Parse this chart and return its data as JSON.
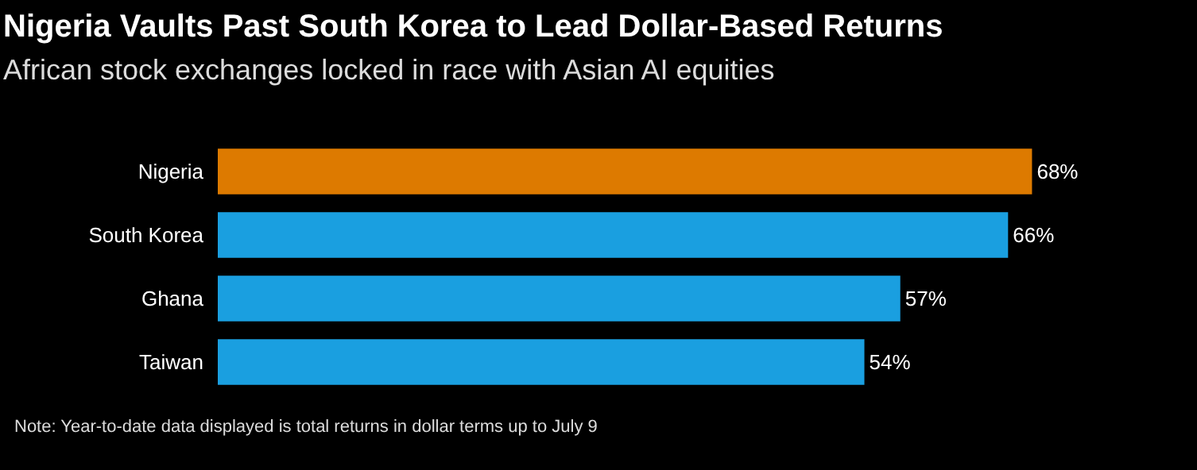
{
  "chart_data": {
    "type": "bar",
    "orientation": "horizontal",
    "title": "Nigeria Vaults Past South Korea to Lead Dollar-Based Returns",
    "subtitle": "African stock exchanges locked in race with Asian AI equities",
    "categories": [
      "Nigeria",
      "South Korea",
      "Ghana",
      "Taiwan"
    ],
    "values": [
      68,
      66,
      57,
      54
    ],
    "colors": [
      "#dd7a00",
      "#1a9fe0",
      "#1a9fe0",
      "#1a9fe0"
    ],
    "value_labels": [
      "68%",
      "66%",
      "57%",
      "54%"
    ],
    "annotations": [
      "Note: Year-to-date data displayed is total returns in dollar terms up to July 9"
    ],
    "data_labels": false
  }
}
